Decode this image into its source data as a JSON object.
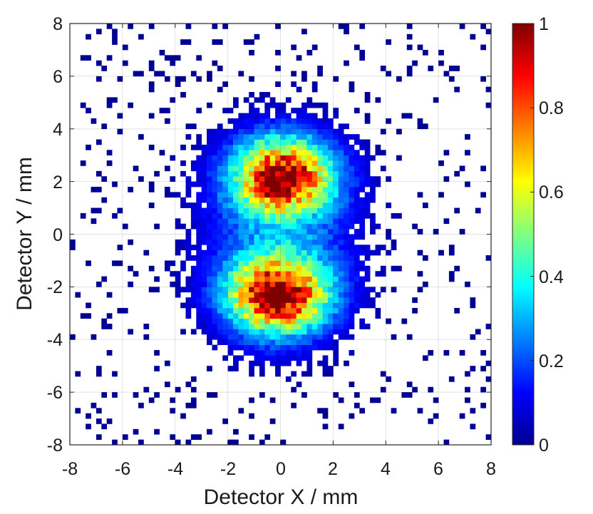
{
  "chart_data": {
    "type": "heatmap",
    "title": "",
    "xlabel": "Detector X / mm",
    "ylabel": "Detector Y / mm",
    "xlim": [
      -8,
      8
    ],
    "ylim": [
      -8,
      8
    ],
    "xticks": [
      "-8",
      "-6",
      "-4",
      "-2",
      "0",
      "2",
      "4",
      "6",
      "8"
    ],
    "yticks": [
      "8",
      "6",
      "4",
      "2",
      "0",
      "-2",
      "-4",
      "-6",
      "-8"
    ],
    "grid": true,
    "colormap": "jet",
    "color_range": [
      0,
      1
    ],
    "colorbar_ticks": [
      "1",
      "0.8",
      "0.6",
      "0.4",
      "0.2",
      "0"
    ],
    "bin_size_mm": 0.2,
    "components": [
      {
        "name": "upper lobe",
        "center": [
          0.1,
          2.2
        ],
        "sigma": [
          1.3,
          1.0
        ],
        "peak": 0.85
      },
      {
        "name": "lower lobe",
        "center": [
          -0.1,
          -2.3
        ],
        "sigma": [
          1.3,
          1.0
        ],
        "peak": 0.9
      },
      {
        "name": "halo",
        "center": [
          0,
          0
        ],
        "sigma": [
          2.3,
          2.9
        ],
        "peak": 0.2
      }
    ],
    "hotspots": [
      {
        "center": [
          -0.4,
          1.9
        ],
        "value": 1.0
      },
      {
        "center": [
          -0.3,
          -2.4
        ],
        "value": 1.0
      }
    ],
    "background_occupancy": 0.09
  }
}
